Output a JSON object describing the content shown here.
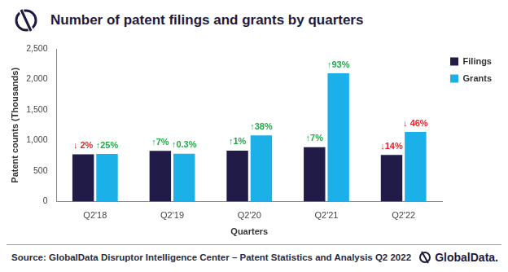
{
  "chart_data": {
    "type": "bar",
    "title": "Number of patent filings and grants by quarters",
    "source": "Source: GlobalData Disruptor Intelligence Center – Patent Statistics and Analysis Q2 2022",
    "logo": "GlobalData.",
    "x_label": "Quarters",
    "y_label": "Patent counts (Thousands)",
    "categories": [
      "Q2'18",
      "Q2'19",
      "Q2'20",
      "Q2'21",
      "Q2'22"
    ],
    "series": [
      {
        "name": "Filings",
        "color": "#211b47",
        "values": [
          775,
          830,
          835,
          890,
          765
        ],
        "annotations": [
          "↓ 2%",
          "↑7%",
          "↑1%",
          "↑7%",
          "↓14%"
        ]
      },
      {
        "name": "Grants",
        "color": "#1cb0e8",
        "values": [
          780,
          785,
          1085,
          2100,
          1140
        ],
        "annotations": [
          "↑25%",
          "↑0.3%",
          "↑38%",
          "↑93%",
          "↓ 46%"
        ]
      }
    ],
    "ylim": [
      0,
      2500
    ],
    "yticks": [
      0,
      500,
      {
        "value": 1000,
        "label": "1,000"
      },
      {
        "value": 1500,
        "label": "1,500"
      },
      {
        "value": 2000,
        "label": "2,000"
      },
      {
        "value": 2500,
        "label": "2,500"
      }
    ],
    "grid": false,
    "legend": "right"
  }
}
